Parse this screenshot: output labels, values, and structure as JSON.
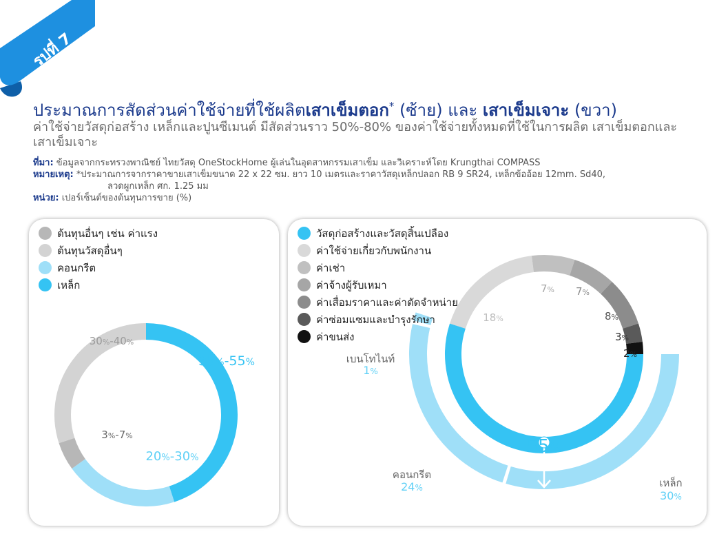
{
  "figure_label": "รูปที่ 7",
  "header": {
    "title_part1": "ประมาณการสัดส่วนค่าใช้จ่ายที่ใช้ผลิต",
    "title_highlight1": "เสาเข็มตอก",
    "title_star": "*",
    "title_part2": "(ซ้าย) และ",
    "title_highlight2": "เสาเข็มเจาะ",
    "title_part3": "(ขวา)",
    "subtitle": "ค่าใช้จ่ายวัสดุก่อสร้าง เหล็กและปูนซีเมนต์ มีสัดส่วนราว 50%-80% ของค่าใช้จ่ายทั้งหมดที่ใช้ในการผลิต เสาเข็มตอกและเสาเข็มเจาะ"
  },
  "notes": {
    "source_label": "ที่มา:",
    "source_text": "ข้อมูลจากกระทรวงพาณิชย์ ไทยวัสดุ OneStockHome ผู้เล่นในอุตสาหกรรมเสาเข็ม และวิเคราะห์โดย Krungthai COMPASS",
    "remark_label": "หมายเหตุ:",
    "remark_line1": "*ประมาณการจากราคาขายเสาเข็มขนาด 22 x 22 ซม. ยาว 10 เมตรและราคาวัสดุเหล็กปลอก RB 9 SR24, เหล็กข้ออ้อย 12mm. Sd40,",
    "remark_line2": "ลวดผูกเหล็ก ศก. 1.25 มม",
    "unit_label": "หน่วย:",
    "unit_text": "เปอร์เซ็นต์ของต้นทุนการขาย (%)"
  },
  "colors": {
    "steel": "#35c3f3",
    "concrete": "#9fdff8",
    "other_material": "#d3d3d3",
    "other_cost": "#b7b7b7",
    "employee": "#d9d9d9",
    "rent": "#c0c0c0",
    "contractor": "#a6a6a6",
    "depreciation": "#8c8c8c",
    "maintenance": "#5a5a5a",
    "transport": "#111111",
    "label_grey": "#9a9a9a",
    "label_dark": "#444444",
    "badge": "#1e90e0"
  },
  "chart_data": [
    {
      "type": "pie",
      "name": "เสาเข็มตอก",
      "legend": [
        {
          "label": "ต้นทุนอื่นๆ เช่น ค่าแรง",
          "color": "#b7b7b7"
        },
        {
          "label": "ต้นทุนวัสดุอื่นๆ",
          "color": "#d3d3d3"
        },
        {
          "label": "คอนกรีต",
          "color": "#9fdff8"
        },
        {
          "label": "เหล็ก",
          "color": "#35c3f3"
        }
      ],
      "segments": [
        {
          "label": "เหล็ก",
          "value_text": "35%-55%",
          "value": 45,
          "color": "#35c3f3"
        },
        {
          "label": "คอนกรีต",
          "value_text": "20%-30%",
          "value": 20,
          "color": "#9fdff8"
        },
        {
          "label": "ต้นทุนอื่นๆ เช่น ค่าแรง",
          "value_text": "3%-7%",
          "value": 5,
          "color": "#b7b7b7"
        },
        {
          "label": "ต้นทุนวัสดุอื่นๆ",
          "value_text": "30%-40%",
          "value": 30,
          "color": "#d3d3d3"
        }
      ]
    },
    {
      "type": "pie",
      "name": "เสาเข็มเจาะ",
      "legend": [
        {
          "label": "วัสดุก่อสร้างและวัสดุสิ้นเปลือง",
          "color": "#35c3f3"
        },
        {
          "label": "ค่าใช้จ่ายเกี่ยวกับพนักงาน",
          "color": "#d9d9d9"
        },
        {
          "label": "ค่าเช่า",
          "color": "#c0c0c0"
        },
        {
          "label": "ค่าจ้างผู้รับเหมา",
          "color": "#a6a6a6"
        },
        {
          "label": "ค่าเสื่อมราคาและค่าตัดจำหน่าย",
          "color": "#8c8c8c"
        },
        {
          "label": "ค่าซ่อมแซมและบำรุงรักษา",
          "color": "#5a5a5a"
        },
        {
          "label": "ค่าขนส่ง",
          "color": "#111111"
        }
      ],
      "segments": [
        {
          "value": 55,
          "value_text": "55%",
          "color": "#35c3f3"
        },
        {
          "value": 18,
          "value_text": "18%",
          "color": "#d9d9d9"
        },
        {
          "value": 7,
          "value_text": "7%",
          "color": "#c0c0c0"
        },
        {
          "value": 7,
          "value_text": "7%",
          "color": "#a6a6a6"
        },
        {
          "value": 8,
          "value_text": "8%",
          "color": "#8c8c8c"
        },
        {
          "value": 3,
          "value_text": "3%",
          "color": "#5a5a5a"
        },
        {
          "value": 2,
          "value_text": "2%",
          "color": "#111111"
        }
      ],
      "breakdown": [
        {
          "label": "เบนโทไนท์",
          "value_text": "1%",
          "value": 1,
          "color": "#9fdff8"
        },
        {
          "label": "คอนกรีต",
          "value_text": "24%",
          "value": 24,
          "color": "#9fdff8"
        },
        {
          "label": "เหล็ก",
          "value_text": "30%",
          "value": 30,
          "color": "#9fdff8"
        }
      ]
    }
  ]
}
